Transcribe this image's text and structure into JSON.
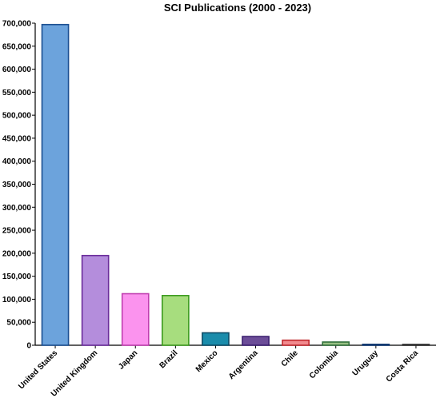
{
  "chart_data": {
    "type": "bar",
    "title": "SCI Publications (2000 - 2023)",
    "xlabel": "",
    "ylabel": "",
    "ylim": [
      0,
      700000
    ],
    "yticks": [
      0,
      50000,
      100000,
      150000,
      200000,
      250000,
      300000,
      350000,
      400000,
      450000,
      500000,
      550000,
      600000,
      650000,
      700000
    ],
    "ytick_labels": [
      "0",
      "50,000",
      "100,000",
      "150,000",
      "200,000",
      "250,000",
      "300,000",
      "350,000",
      "400,000",
      "450,000",
      "500,000",
      "550,000",
      "600,000",
      "650,000",
      "700,000"
    ],
    "categories": [
      "United States",
      "United Kingdom",
      "Japan",
      "Brazil",
      "Mexico",
      "Argentina",
      "Chile",
      "Colombia",
      "Uruguay",
      "Costa Rica"
    ],
    "values": [
      697000,
      195000,
      112000,
      108000,
      27000,
      19000,
      11000,
      7000,
      2000,
      1000
    ],
    "fill_colors": [
      "#6ca3dc",
      "#b48ddc",
      "#fb93ee",
      "#a7dd7e",
      "#1a8cab",
      "#6c4d98",
      "#f18a8e",
      "#98c084",
      "#1b5fa0",
      "#7b7b7b"
    ],
    "stroke_colors": [
      "#1b4f91",
      "#6a2d9b",
      "#c03fb0",
      "#3c9b1f",
      "#0b4b66",
      "#3b1f70",
      "#c1272d",
      "#2f6f3a",
      "#103870",
      "#2a2a2a"
    ],
    "grid": false,
    "legend": "none"
  }
}
